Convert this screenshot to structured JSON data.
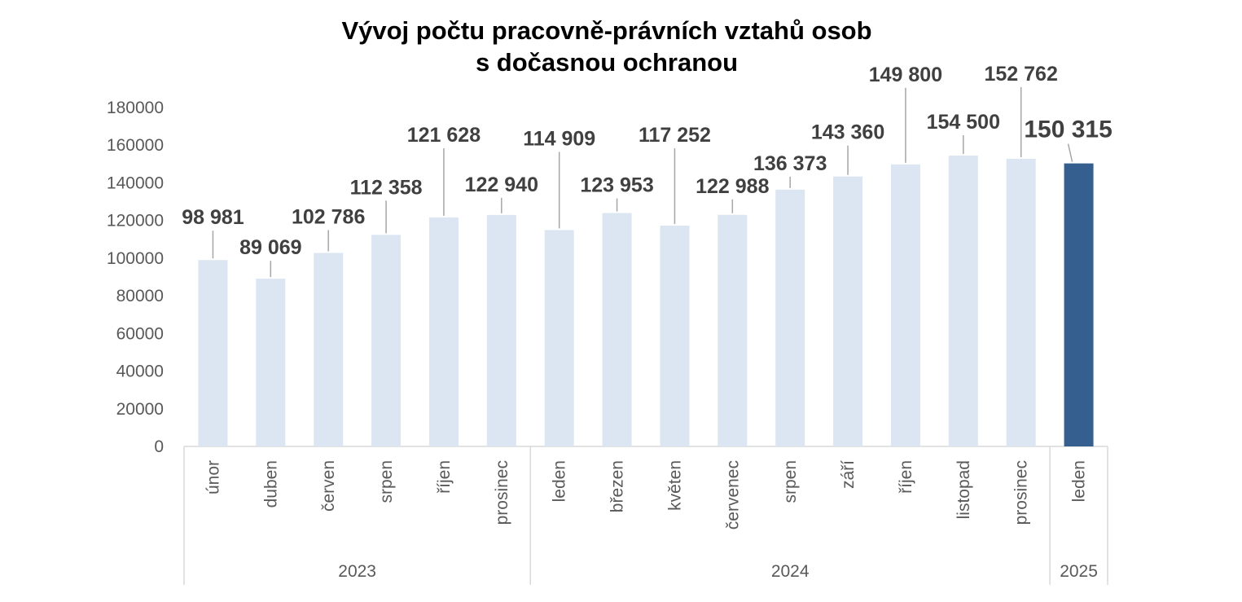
{
  "chart_data": {
    "type": "bar",
    "title": [
      "Vývoj počtu pracovně-právních vztahů osob",
      "s dočasnou ochranou"
    ],
    "xlabel": "",
    "ylabel": "",
    "ylim": [
      0,
      180000
    ],
    "yticks": [
      0,
      20000,
      40000,
      60000,
      80000,
      100000,
      120000,
      140000,
      160000,
      180000
    ],
    "ytick_labels": [
      "0",
      "20000",
      "40000",
      "60000",
      "80000",
      "100000",
      "120000",
      "140000",
      "160000",
      "180000"
    ],
    "grid": false,
    "legend": "none",
    "groups": [
      {
        "label": "2023",
        "count": 6
      },
      {
        "label": "2024",
        "count": 9
      },
      {
        "label": "2025",
        "count": 1
      }
    ],
    "categories": [
      "únor",
      "duben",
      "červen",
      "srpen",
      "říjen",
      "prosinec",
      "leden",
      "březen",
      "květen",
      "červenec",
      "srpen",
      "září",
      "říjen",
      "listopad",
      "prosinec",
      "leden"
    ],
    "values": [
      98981,
      89069,
      102786,
      112358,
      121628,
      122940,
      114909,
      123953,
      117252,
      122988,
      136373,
      143360,
      149800,
      154500,
      152762,
      150315
    ],
    "value_labels": [
      "98 981",
      "89 069",
      "102 786",
      "112 358",
      "121 628",
      "122 940",
      "114 909",
      "123 953",
      "117 252",
      "122 988",
      "136 373",
      "143 360",
      "149 800",
      "154 500",
      "152 762",
      "150 315"
    ],
    "highlight_index": 15,
    "colors": {
      "bar": "#dce6f2",
      "bar_highlight": "#355f8f",
      "leader": "#a6a6a6",
      "axis": "#d9d9d9",
      "text": "#595959",
      "label": "#404040"
    }
  }
}
